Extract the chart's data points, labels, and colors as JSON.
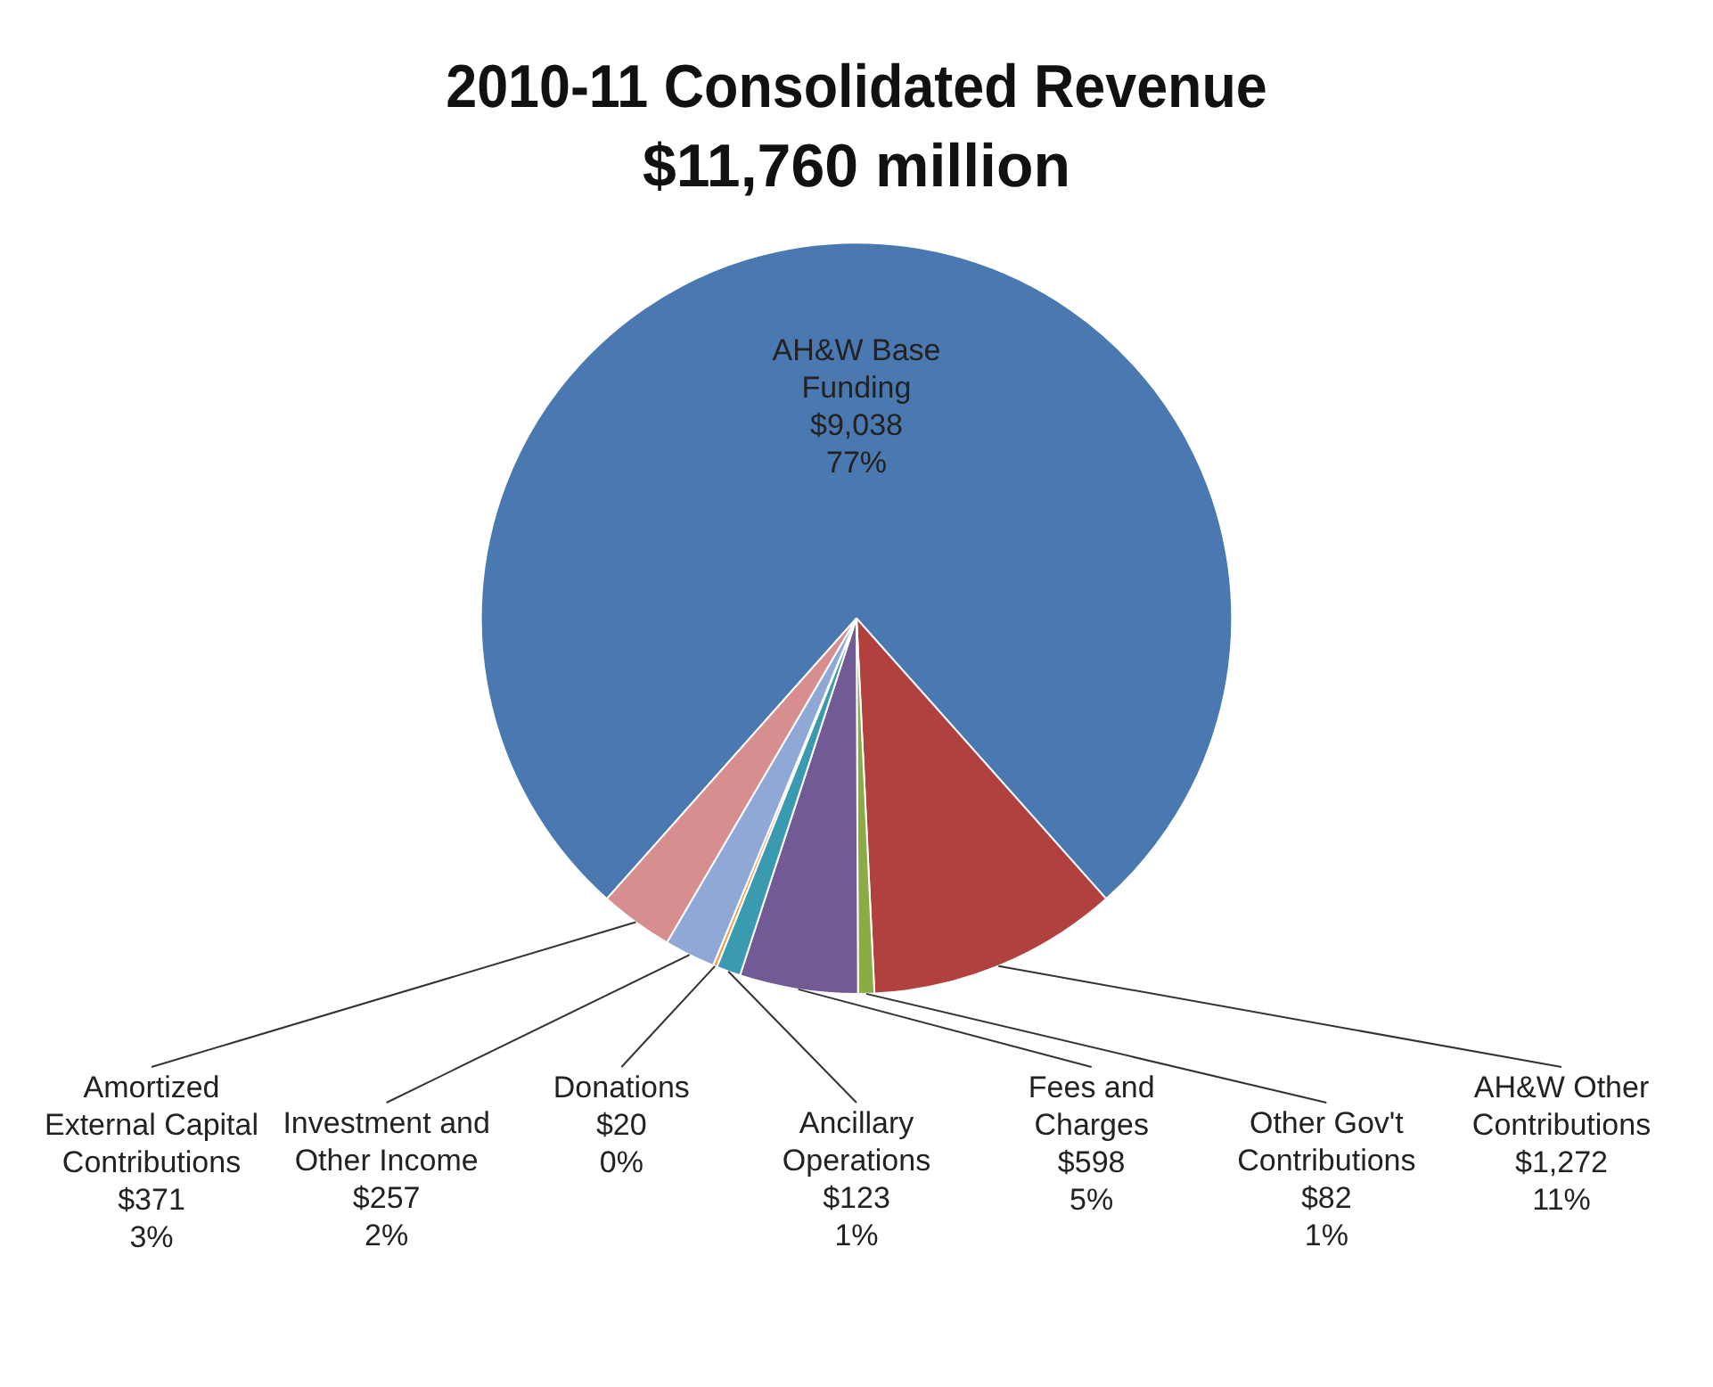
{
  "chart_data": {
    "type": "pie",
    "title": "2010-11 Consolidated Revenue",
    "subtitle": "$11,760 million",
    "categories": [
      "AH&W Base Funding",
      "AH&W Other Contributions",
      "Other Gov't Contributions",
      "Fees and Charges",
      "Ancillary Operations",
      "Donations",
      "Investment and Other Income",
      "Amortized External Capital Contributions"
    ],
    "values": [
      9038,
      1272,
      82,
      598,
      123,
      20,
      257,
      371
    ],
    "colors": [
      "#4a78b0",
      "#b0413e",
      "#8aab45",
      "#725a95",
      "#3a9bb0",
      "#f29d4b",
      "#8fa8d6",
      "#d68f8e"
    ],
    "value_labels": [
      "$9,038\n77%",
      "$1,272\n11%",
      "$82\n1%",
      "$598\n5%",
      "$123\n1%",
      "$20\n0%",
      "$257\n2%",
      "$371\n3%"
    ],
    "legend": false
  }
}
